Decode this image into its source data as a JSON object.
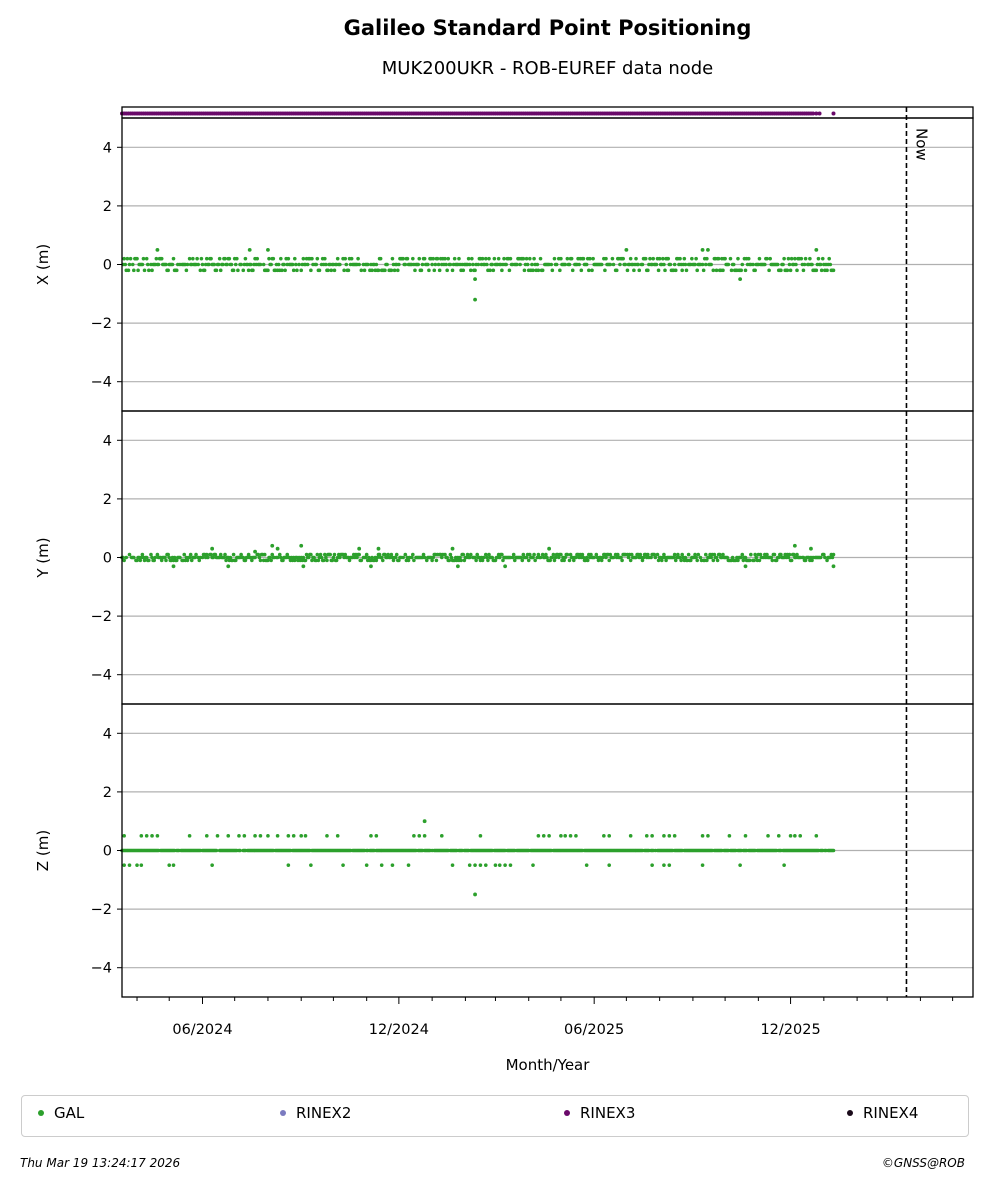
{
  "header": {
    "title": "Galileo Standard Point Positioning",
    "subtitle": "MUK200UKR - ROB-EUREF data node"
  },
  "chart_data": {
    "type": "scatter",
    "title": "Galileo Standard Point Positioning",
    "subtitle": "MUK200UKR - ROB-EUREF data node",
    "xlabel": "Month/Year",
    "x_tick_labels": [
      "06/2024",
      "12/2024",
      "06/2025",
      "12/2025"
    ],
    "x_range": [
      "2024-03-18",
      "2026-05-20"
    ],
    "now_marker": {
      "label": "Now",
      "date": "2026-03-19"
    },
    "data_start": "2024-03-18",
    "data_end": "2026-01-10",
    "grid": true,
    "legend_placement": "bottom",
    "panels": [
      {
        "ylabel": "X (m)",
        "ylim": [
          -5,
          5
        ],
        "yticks": [
          -4,
          -2,
          0,
          2,
          4
        ],
        "baseline_levels": [
          0.2,
          0.0,
          -0.2
        ],
        "outliers": [
          {
            "x": "2024-04-20",
            "y": 0.5
          },
          {
            "x": "2024-07-15",
            "y": 0.5
          },
          {
            "x": "2024-08-01",
            "y": 0.5
          },
          {
            "x": "2025-02-10",
            "y": -0.5
          },
          {
            "x": "2025-02-10",
            "y": -1.2
          },
          {
            "x": "2025-07-01",
            "y": 0.5
          },
          {
            "x": "2025-09-10",
            "y": 0.5
          },
          {
            "x": "2025-09-15",
            "y": 0.5
          },
          {
            "x": "2025-10-15",
            "y": -0.5
          },
          {
            "x": "2025-12-25",
            "y": 0.5
          }
        ]
      },
      {
        "ylabel": "Y (m)",
        "ylim": [
          -5,
          5
        ],
        "yticks": [
          -4,
          -2,
          0,
          2,
          4
        ],
        "baseline_levels": [
          0.1,
          0.0,
          -0.1
        ],
        "outliers": [
          {
            "x": "2024-05-05",
            "y": -0.3
          },
          {
            "x": "2024-06-10",
            "y": 0.3
          },
          {
            "x": "2024-06-25",
            "y": -0.3
          },
          {
            "x": "2024-07-20",
            "y": 0.2
          },
          {
            "x": "2024-08-05",
            "y": 0.4
          },
          {
            "x": "2024-08-10",
            "y": 0.3
          },
          {
            "x": "2024-09-01",
            "y": 0.4
          },
          {
            "x": "2024-09-03",
            "y": -0.3
          },
          {
            "x": "2024-10-25",
            "y": 0.3
          },
          {
            "x": "2024-11-05",
            "y": -0.3
          },
          {
            "x": "2024-11-12",
            "y": 0.3
          },
          {
            "x": "2025-01-20",
            "y": 0.3
          },
          {
            "x": "2025-01-25",
            "y": -0.3
          },
          {
            "x": "2025-03-10",
            "y": -0.3
          },
          {
            "x": "2025-04-20",
            "y": 0.3
          },
          {
            "x": "2025-10-20",
            "y": -0.3
          },
          {
            "x": "2025-12-05",
            "y": 0.4
          },
          {
            "x": "2025-12-20",
            "y": 0.3
          },
          {
            "x": "2026-01-10",
            "y": -0.3
          }
        ]
      },
      {
        "ylabel": "Z (m)",
        "ylim": [
          -5,
          5
        ],
        "yticks": [
          -4,
          -2,
          0,
          2,
          4
        ],
        "baseline_levels": [
          0.0
        ],
        "upper_level": 0.5,
        "lower_level": -0.5,
        "upper_dates": [
          "2024-03-20",
          "2024-04-05",
          "2024-04-10",
          "2024-04-15",
          "2024-04-20",
          "2024-05-20",
          "2024-06-05",
          "2024-06-15",
          "2024-06-25",
          "2024-07-05",
          "2024-07-10",
          "2024-07-20",
          "2024-07-25",
          "2024-08-01",
          "2024-08-10",
          "2024-08-20",
          "2024-08-25",
          "2024-09-01",
          "2024-09-05",
          "2024-09-25",
          "2024-10-05",
          "2024-11-05",
          "2024-11-10",
          "2024-12-15",
          "2024-12-20",
          "2024-12-25",
          "2025-01-10",
          "2025-02-15",
          "2025-04-10",
          "2025-04-15",
          "2025-04-20",
          "2025-05-01",
          "2025-05-05",
          "2025-05-10",
          "2025-05-15",
          "2025-06-10",
          "2025-06-15",
          "2025-07-05",
          "2025-07-20",
          "2025-07-25",
          "2025-08-05",
          "2025-08-10",
          "2025-08-15",
          "2025-09-10",
          "2025-09-15",
          "2025-10-05",
          "2025-10-20",
          "2025-11-10",
          "2025-11-20",
          "2025-12-01",
          "2025-12-05",
          "2025-12-10",
          "2025-12-25"
        ],
        "lower_dates": [
          "2024-03-20",
          "2024-03-25",
          "2024-04-01",
          "2024-04-05",
          "2024-05-01",
          "2024-05-05",
          "2024-06-10",
          "2024-08-20",
          "2024-09-10",
          "2024-10-10",
          "2024-11-01",
          "2024-11-15",
          "2024-11-25",
          "2024-12-10",
          "2025-01-20",
          "2025-02-05",
          "2025-02-10",
          "2025-02-15",
          "2025-02-20",
          "2025-03-01",
          "2025-03-05",
          "2025-03-10",
          "2025-03-15",
          "2025-04-05",
          "2025-05-25",
          "2025-06-15",
          "2025-07-25",
          "2025-08-05",
          "2025-08-10",
          "2025-09-10",
          "2025-10-15",
          "2025-11-25"
        ],
        "outliers": [
          {
            "x": "2024-12-25",
            "y": 1.0
          },
          {
            "x": "2025-02-10",
            "y": -1.5
          }
        ]
      }
    ],
    "rinex_strip": {
      "series": "RINEX3",
      "dense_until": "2025-12-20",
      "extra_points": [
        "2025-12-22",
        "2025-12-25",
        "2025-12-28",
        "2026-01-10"
      ]
    },
    "series": [
      {
        "name": "GAL",
        "color": "#2ca02c"
      },
      {
        "name": "RINEX2",
        "color": "#7b7bc0"
      },
      {
        "name": "RINEX3",
        "color": "#6a0a6a"
      },
      {
        "name": "RINEX4",
        "color": "#1a0a1a"
      }
    ]
  },
  "legend": {
    "items": [
      {
        "label": "GAL",
        "color": "#2ca02c"
      },
      {
        "label": "RINEX2",
        "color": "#7b7bc0"
      },
      {
        "label": "RINEX3",
        "color": "#6a0a6a"
      },
      {
        "label": "RINEX4",
        "color": "#1a0a1a"
      }
    ]
  },
  "footer": {
    "timestamp": "Thu Mar 19 13:24:17 2026",
    "copyright": "©GNSS@ROB"
  }
}
